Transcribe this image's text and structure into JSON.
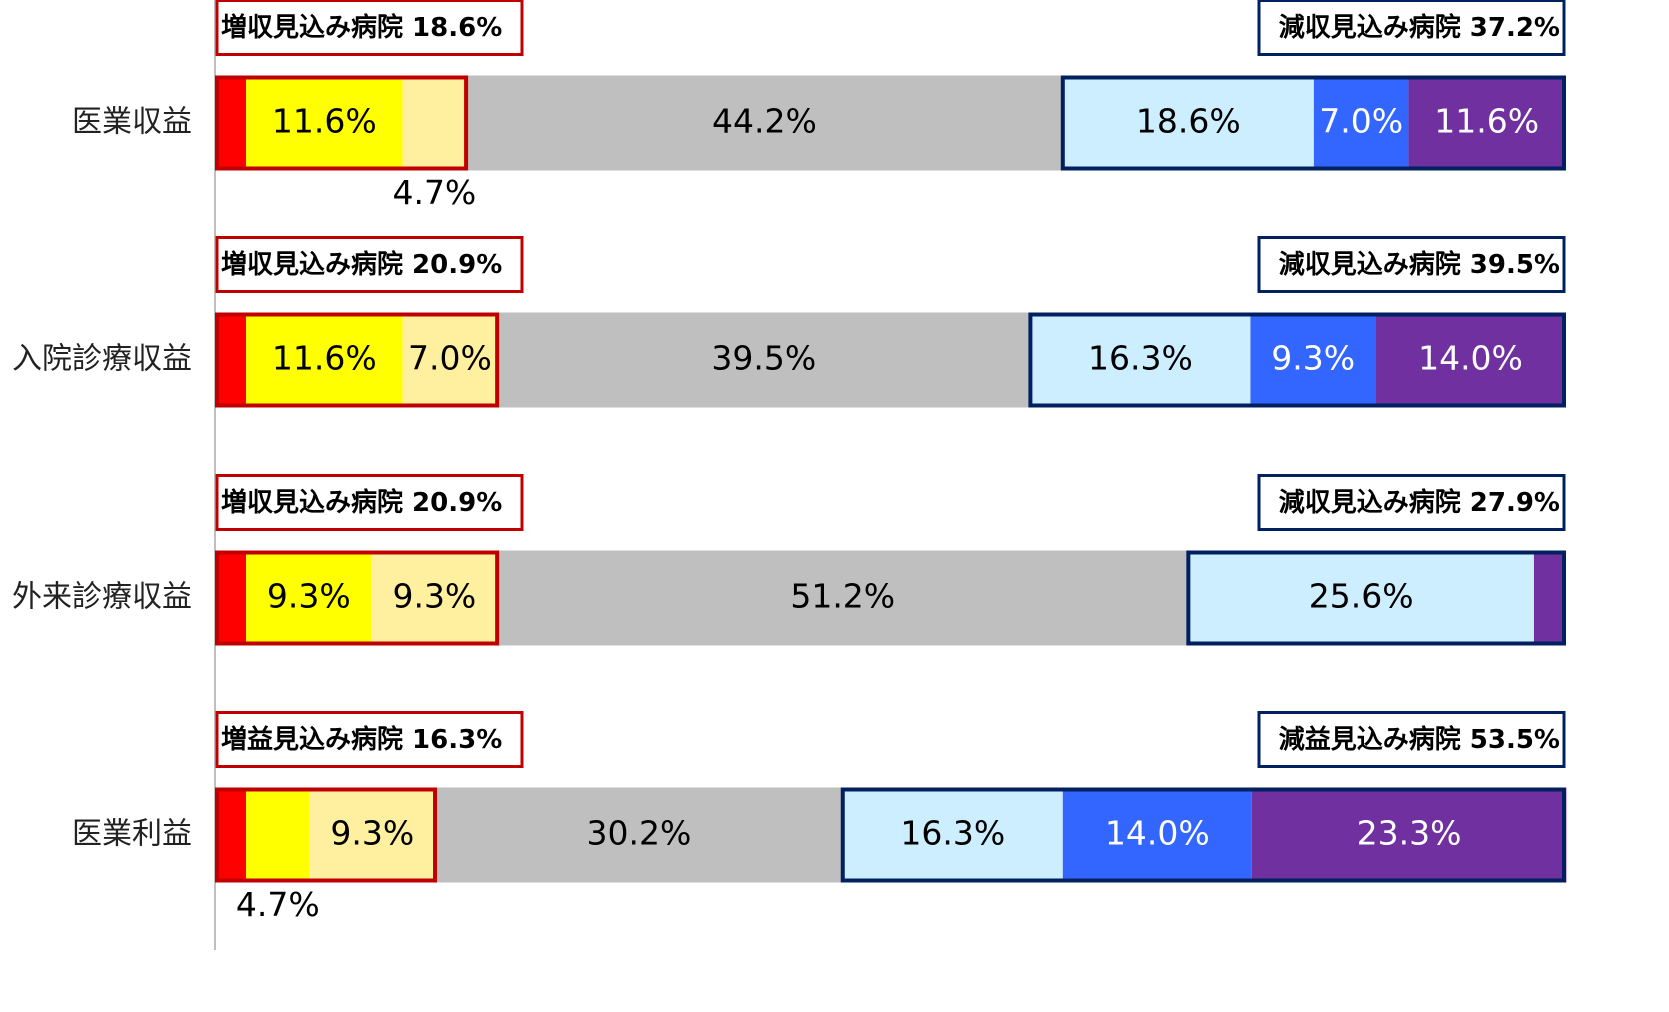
{
  "chart_data": {
    "type": "stacked_bar_horizontal",
    "categories": [
      "医業収益",
      "入院診療収益",
      "外来診療収益",
      "医業利益"
    ],
    "xlim": [
      0,
      100
    ],
    "series": [
      {
        "color": "#ff0000",
        "text_color": "#000000",
        "values": [
          2.3,
          2.3,
          2.3,
          2.3
        ],
        "value_labels": [
          null,
          null,
          null,
          null
        ]
      },
      {
        "color": "#ffff00",
        "text_color": "#000000",
        "values": [
          11.6,
          11.6,
          9.3,
          4.7
        ],
        "value_labels": [
          "11.6%",
          "11.6%",
          "9.3%",
          "4.7%"
        ]
      },
      {
        "color": "#fff09f",
        "text_color": "#000000",
        "values": [
          4.7,
          7.0,
          9.3,
          9.3
        ],
        "value_labels": [
          "4.7%",
          "7.0%",
          "9.3%",
          "9.3%"
        ]
      },
      {
        "color": "#bfbfbf",
        "text_color": "#000000",
        "values": [
          44.2,
          39.5,
          51.2,
          30.2
        ],
        "value_labels": [
          "44.2%",
          "39.5%",
          "51.2%",
          "30.2%"
        ]
      },
      {
        "color": "#cdeeff",
        "text_color": "#000000",
        "values": [
          18.6,
          16.3,
          25.6,
          16.3
        ],
        "value_labels": [
          "18.6%",
          "16.3%",
          "25.6%",
          "16.3%"
        ]
      },
      {
        "color": "#3366ff",
        "text_color": "#ffffff",
        "values": [
          7.0,
          9.3,
          0,
          14.0
        ],
        "value_labels": [
          "7.0%",
          "9.3%",
          null,
          "14.0%"
        ]
      },
      {
        "color": "#7030a0",
        "text_color": "#ffffff",
        "values": [
          11.6,
          14.0,
          2.3,
          23.3
        ],
        "value_labels": [
          "11.6%",
          "14.0%",
          null,
          "23.3%"
        ]
      }
    ],
    "increase_color": "#c00000",
    "decrease_color": "#002060",
    "increase_labels": [
      "増収見込み病院 18.6%",
      "増収見込み病院 20.9%",
      "増収見込み病院 20.9%",
      "増益見込み病院 16.3%"
    ],
    "decrease_labels": [
      "減収見込み病院 37.2%",
      "減収見込み病院 39.5%",
      "減収見込み病院 27.9%",
      "減益見込み病院 53.5%"
    ]
  }
}
